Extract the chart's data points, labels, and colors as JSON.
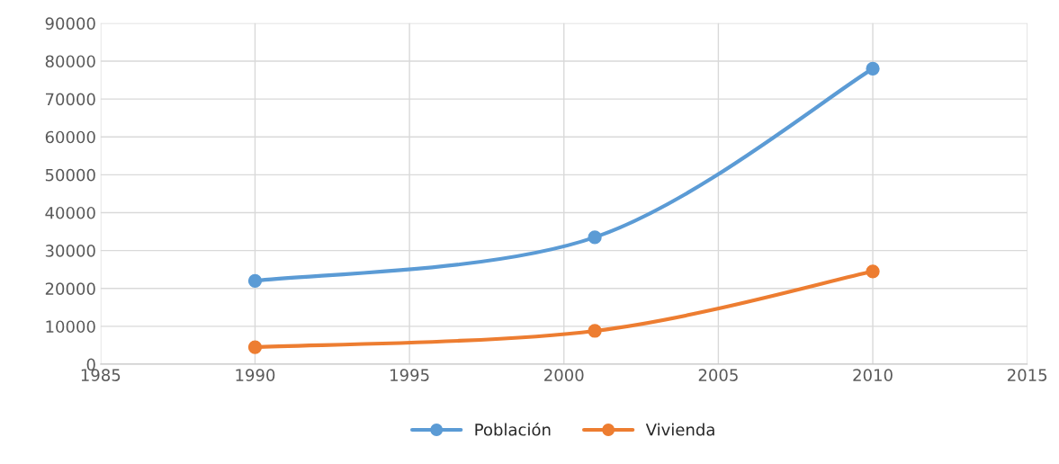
{
  "chart_data": {
    "type": "line",
    "x": [
      1990,
      2001,
      2010
    ],
    "series": [
      {
        "name": "Población",
        "color": "#5b9bd5",
        "values": [
          22000,
          33500,
          78000
        ]
      },
      {
        "name": "Vivienda",
        "color": "#ed7d31",
        "values": [
          4500,
          8800,
          24500
        ]
      }
    ],
    "xlim": [
      1985,
      2015
    ],
    "xticks": [
      1985,
      1990,
      1995,
      2000,
      2005,
      2010,
      2015
    ],
    "ylim": [
      0,
      90000
    ],
    "yticks": [
      0,
      10000,
      20000,
      30000,
      40000,
      50000,
      60000,
      70000,
      80000,
      90000
    ],
    "grid": true,
    "legend": "bottom",
    "marker": "circle",
    "line_style": "solid"
  }
}
